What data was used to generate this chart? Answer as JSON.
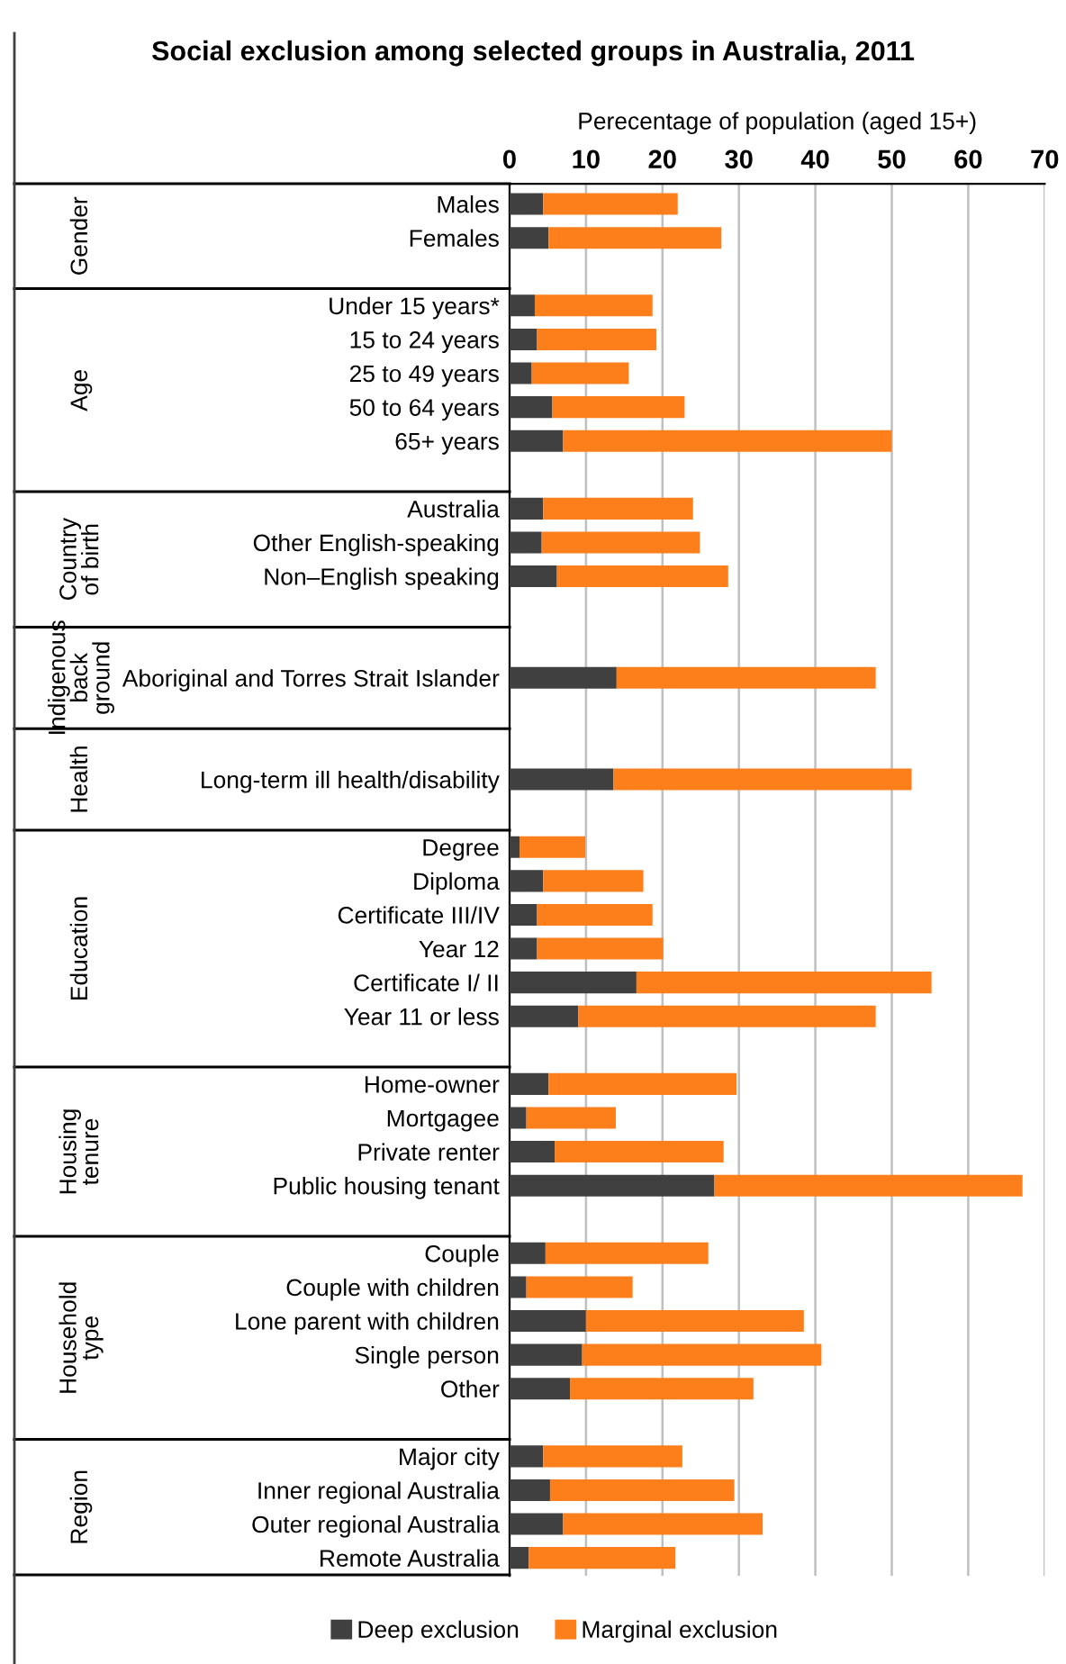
{
  "chart_data": {
    "type": "bar",
    "orientation": "horizontal",
    "stacked": true,
    "title": "Social exclusion among selected groups in Australia, 2011",
    "xlabel": "Perecentage of population (aged 15+)",
    "categories": [
      "Males",
      "Females",
      null,
      "Under 15 years*",
      "15 to 24 years",
      "25 to 49 years",
      "50 to 64 years",
      "65+ years",
      null,
      "Australia",
      "Other English-speaking",
      "Non–English speaking",
      null,
      null,
      "Aboriginal and Torres Strait Islander",
      null,
      null,
      "Long-term ill health/disability",
      null,
      "Degree",
      "Diploma",
      "Certificate III/IV",
      "Year 12",
      "Certificate I/ II",
      "Year 11 or less",
      null,
      "Home-owner",
      "Mortgagee",
      "Private renter",
      "Public housing tenant",
      null,
      "Couple",
      "Couple with children",
      "Lone parent with children",
      "Single person",
      "Other",
      null,
      "Major city",
      "Inner regional Australia",
      "Outer regional Australia",
      "Remote Australia"
    ],
    "series": [
      {
        "name": "Deep exclusion",
        "color": "#404040",
        "values": [
          4.4,
          5.1,
          null,
          3.3,
          3.6,
          2.9,
          5.6,
          7.0,
          null,
          4.4,
          4.2,
          6.2,
          null,
          null,
          14.0,
          null,
          null,
          13.6,
          null,
          1.3,
          4.4,
          3.6,
          3.6,
          16.6,
          9.0,
          null,
          5.1,
          2.2,
          5.9,
          26.8,
          null,
          4.7,
          2.2,
          10.0,
          9.5,
          7.9,
          null,
          4.4,
          5.3,
          7.0,
          2.5
        ]
      },
      {
        "name": "Marginal exclusion",
        "color": "#fd7f1c",
        "values": [
          17.6,
          22.6,
          null,
          15.4,
          15.6,
          12.7,
          17.3,
          43.0,
          null,
          19.6,
          20.7,
          22.4,
          null,
          null,
          33.9,
          null,
          null,
          39.0,
          null,
          8.6,
          13.1,
          15.1,
          16.5,
          38.6,
          38.9,
          null,
          24.6,
          11.7,
          22.1,
          40.3,
          null,
          21.3,
          13.9,
          28.5,
          31.3,
          24.0,
          null,
          18.2,
          24.1,
          26.1,
          19.2
        ]
      }
    ],
    "annotations": [
      "Gender",
      "Age",
      "Country\nof birth",
      "Indigenous\nback\nground",
      "Health",
      "Education",
      "Housing\ntenure",
      "Household\ntype",
      "Region"
    ],
    "xlim": [
      0,
      70
    ],
    "xticks": [
      0,
      10,
      20,
      30,
      40,
      50,
      60,
      70
    ],
    "grid": "x",
    "legend": "bottom"
  }
}
